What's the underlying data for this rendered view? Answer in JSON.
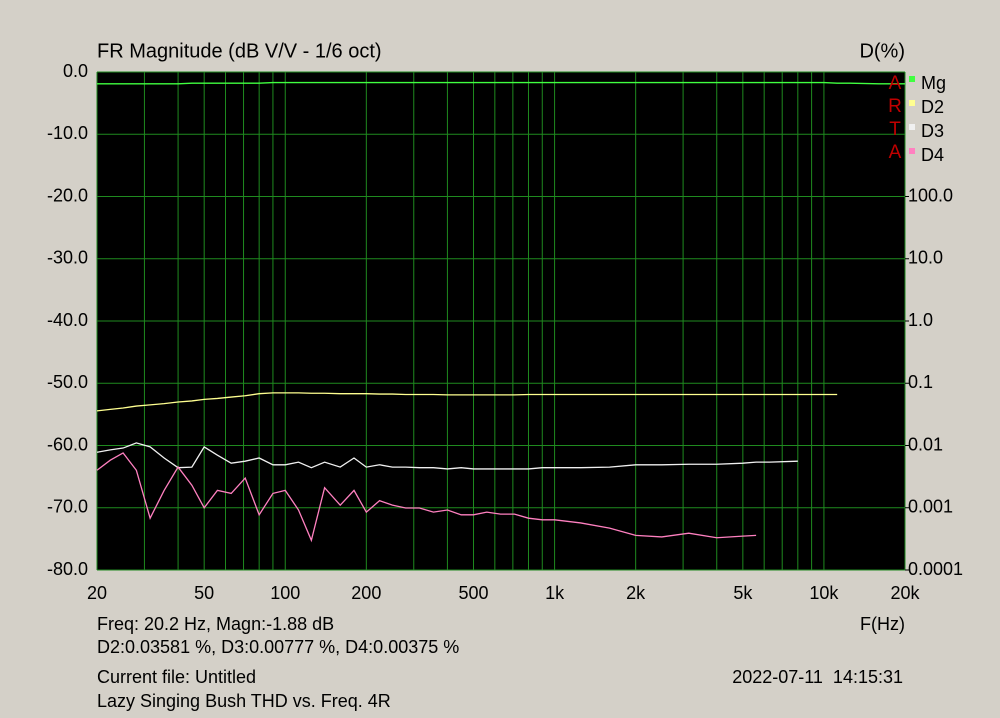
{
  "chart_data": {
    "type": "line",
    "title": "FR Magnitude (dB V/V - 1/6 oct)",
    "y2_label": "D(%)",
    "x_label": "F(Hz)",
    "watermark": [
      "A",
      "R",
      "T",
      "A"
    ],
    "footer": [
      "Freq: 20.2 Hz, Magn:-1.88 dB",
      "D2:0.03581 %, D3:0.00777 %, D4:0.00375 %",
      "Current file: Untitled",
      "Lazy Singing Bush THD vs. Freq. 4R"
    ],
    "timestamp": "2022-07-11  14:15:31",
    "xscale": "log",
    "y2scale": "log",
    "grid": true,
    "legend": "right",
    "xlim": [
      20,
      20000
    ],
    "xticks": [
      20,
      50,
      100,
      200,
      500,
      {
        "value": 1000,
        "label": "1k"
      },
      {
        "value": 2000,
        "label": "2k"
      },
      {
        "value": 5000,
        "label": "5k"
      },
      {
        "value": 10000,
        "label": "10k"
      },
      {
        "value": 20000,
        "label": "20k"
      }
    ],
    "x_minor_ticks": [
      30,
      40,
      60,
      70,
      80,
      90,
      300,
      400,
      600,
      700,
      800,
      900,
      3000,
      4000,
      6000,
      7000,
      8000,
      9000
    ],
    "ylim": [
      -80,
      0
    ],
    "yticks": [
      {
        "value": 0,
        "label": "0.0"
      },
      {
        "value": -10,
        "label": "-10.0"
      },
      {
        "value": -20,
        "label": "-20.0"
      },
      {
        "value": -30,
        "label": "-30.0"
      },
      {
        "value": -40,
        "label": "-40.0"
      },
      {
        "value": -50,
        "label": "-50.0"
      },
      {
        "value": -60,
        "label": "-60.0"
      },
      {
        "value": -70,
        "label": "-70.0"
      },
      {
        "value": -80,
        "label": "-80.0"
      }
    ],
    "y2lim": [
      0.0001,
      10000
    ],
    "y2ticks": [
      {
        "value": 100,
        "label": "100.0"
      },
      {
        "value": 10,
        "label": "10.0"
      },
      {
        "value": 1,
        "label": "1.0"
      },
      0.1,
      0.01,
      0.001,
      0.0001
    ],
    "x": [
      20,
      22.4,
      25,
      28,
      31.5,
      35.5,
      40,
      45,
      50,
      56,
      63,
      71,
      80,
      90,
      100,
      112,
      125,
      140,
      160,
      180,
      200,
      224,
      250,
      280,
      315,
      355,
      400,
      450,
      500,
      560,
      630,
      710,
      800,
      900,
      1000,
      1250,
      1600,
      2000,
      2500,
      3150,
      4000,
      5000,
      5600,
      6300,
      8000,
      10000,
      11200,
      12500,
      16000,
      20000
    ],
    "series": [
      {
        "name": "Mg",
        "color": "#40ff40",
        "values": [
          -1.9,
          -1.9,
          -1.9,
          -1.9,
          -1.9,
          -1.9,
          -1.9,
          -1.8,
          -1.8,
          -1.8,
          -1.8,
          -1.8,
          -1.8,
          -1.7,
          -1.7,
          -1.7,
          -1.7,
          -1.7,
          -1.7,
          -1.7,
          -1.7,
          -1.7,
          -1.7,
          -1.7,
          -1.7,
          -1.7,
          -1.7,
          -1.7,
          -1.7,
          -1.7,
          -1.7,
          -1.7,
          -1.7,
          -1.7,
          -1.7,
          -1.7,
          -1.7,
          -1.7,
          -1.7,
          -1.7,
          -1.7,
          -1.7,
          -1.7,
          -1.7,
          -1.7,
          -1.7,
          -1.8,
          -1.8,
          -1.9,
          -1.9
        ]
      },
      {
        "name": "D2",
        "color": "#ffff90",
        "axis": "y2",
        "values": [
          0.036,
          0.038,
          0.04,
          0.043,
          0.045,
          0.047,
          0.05,
          0.052,
          0.055,
          0.057,
          0.06,
          0.063,
          0.068,
          0.07,
          0.07,
          0.07,
          0.069,
          0.069,
          0.068,
          0.068,
          0.068,
          0.067,
          0.067,
          0.066,
          0.066,
          0.066,
          0.065,
          0.065,
          0.065,
          0.065,
          0.065,
          0.065,
          0.066,
          0.066,
          0.066,
          0.066,
          0.066,
          0.066,
          0.066,
          0.066,
          0.066,
          0.066,
          0.066,
          0.066,
          0.066,
          0.066,
          0.066,
          null,
          null,
          null
        ]
      },
      {
        "name": "D3",
        "color": "#f0f0f0",
        "axis": "y2",
        "values": [
          0.0078,
          0.0085,
          0.0091,
          0.011,
          0.0095,
          0.0063,
          0.0044,
          0.0045,
          0.0095,
          0.007,
          0.0052,
          0.0056,
          0.0063,
          0.0049,
          0.0049,
          0.0054,
          0.0044,
          0.0054,
          0.0045,
          0.0063,
          0.0045,
          0.0049,
          0.0045,
          0.0045,
          0.0044,
          0.0044,
          0.0042,
          0.0044,
          0.0042,
          0.0042,
          0.0042,
          0.0042,
          0.0042,
          0.0044,
          0.0044,
          0.0044,
          0.0045,
          0.0049,
          0.0049,
          0.005,
          0.005,
          0.0052,
          0.0054,
          0.0054,
          0.0056,
          null,
          null,
          null,
          null,
          null
        ]
      },
      {
        "name": "D4",
        "color": "#ff80c0",
        "axis": "y2",
        "values": [
          0.004,
          0.0058,
          0.0076,
          0.004,
          0.00068,
          0.0019,
          0.0045,
          0.0023,
          0.001,
          0.0019,
          0.0017,
          0.003,
          0.00077,
          0.0017,
          0.0019,
          0.00092,
          0.0003,
          0.0021,
          0.0011,
          0.0019,
          0.00085,
          0.0013,
          0.0011,
          0.00099,
          0.00099,
          0.00085,
          0.00092,
          0.00077,
          0.00077,
          0.00085,
          0.00079,
          0.00079,
          0.00068,
          0.00064,
          0.00064,
          0.00057,
          0.00047,
          0.00036,
          0.00034,
          0.00039,
          0.00033,
          0.00035,
          0.00036,
          null,
          null,
          null,
          null,
          null,
          null,
          null
        ]
      }
    ]
  }
}
